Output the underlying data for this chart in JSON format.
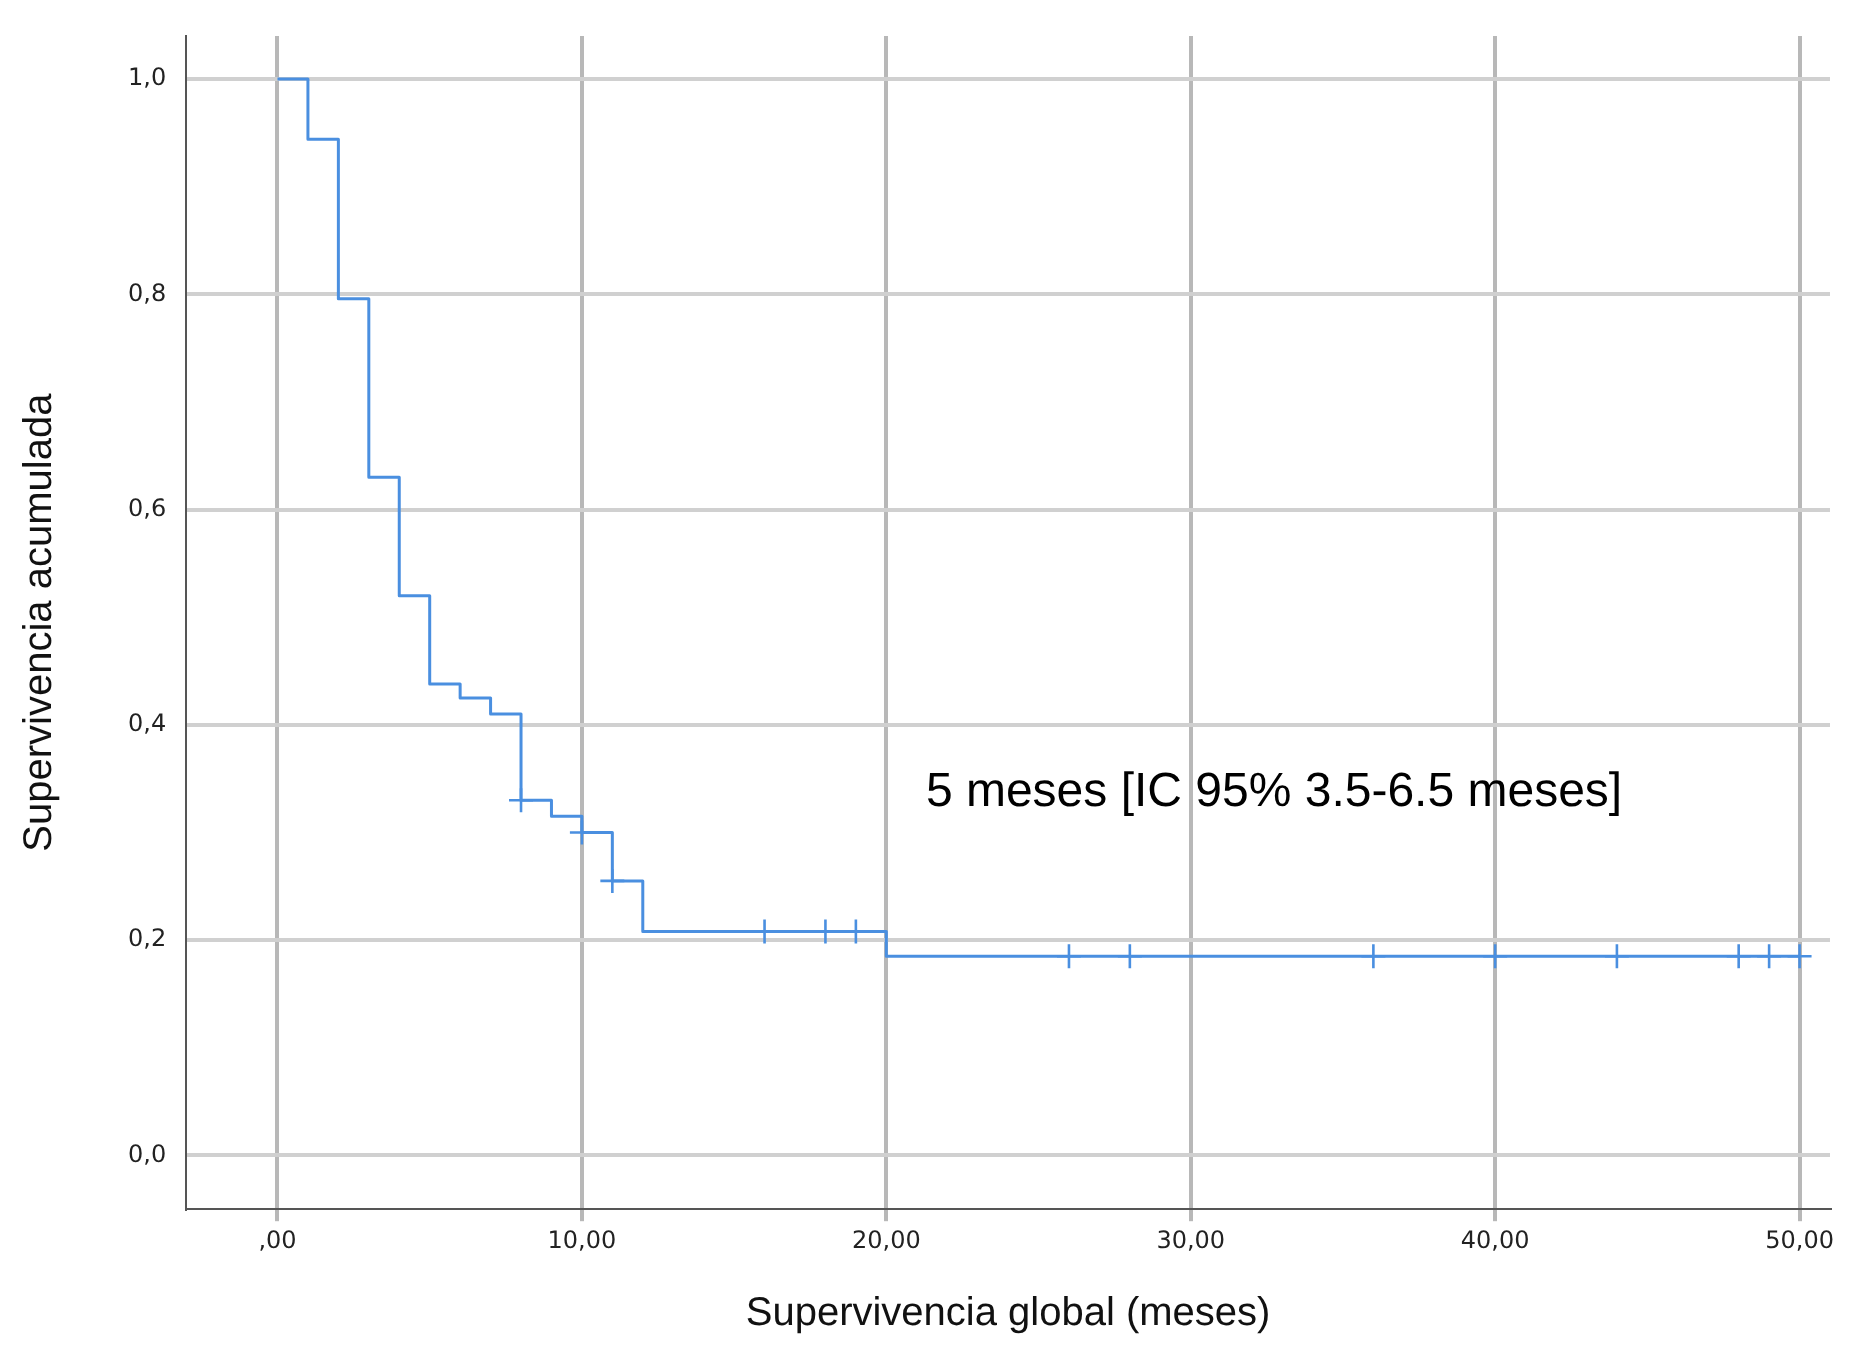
{
  "chart_data": {
    "type": "step",
    "xlabel": "Supervivencia global (meses)",
    "ylabel": "Supervivencia acumulada",
    "annotations": [
      "5 meses [IC 95% 3.5-6.5 meses]"
    ],
    "xlim": [
      -3,
      51
    ],
    "ylim": [
      -0.05,
      1.04
    ],
    "xticks": [
      {
        "value": 0,
        "label": ",00"
      },
      {
        "value": 10,
        "label": "10,00"
      },
      {
        "value": 20,
        "label": "20,00"
      },
      {
        "value": 30,
        "label": "30,00"
      },
      {
        "value": 40,
        "label": "40,00"
      },
      {
        "value": 50,
        "label": "50,00"
      }
    ],
    "yticks": [
      {
        "value": 0,
        "label": "0,0"
      },
      {
        "value": 0.2,
        "label": "0,2"
      },
      {
        "value": 0.4,
        "label": "0,4"
      },
      {
        "value": 0.6,
        "label": "0,6"
      },
      {
        "value": 0.8,
        "label": "0,8"
      },
      {
        "value": 1,
        "label": "1,0"
      }
    ],
    "grid": true,
    "legend": false,
    "series": [
      {
        "color": "#4a8fe0",
        "marker": "none",
        "x": [
          0,
          1,
          2,
          3,
          4,
          5,
          6,
          7,
          8,
          9,
          10,
          11,
          12,
          20,
          50
        ],
        "values": [
          1,
          0.944,
          0.796,
          0.63,
          0.52,
          0.438,
          0.425,
          0.41,
          0.33,
          0.315,
          0.3,
          0.255,
          0.208,
          0.185,
          0.185
        ]
      },
      {
        "type": "scatter",
        "color": "#4a8fe0",
        "marker": "cross",
        "x": [
          8,
          10,
          11,
          16,
          18,
          19,
          26,
          28,
          36,
          40,
          44,
          48,
          49,
          50
        ],
        "values": [
          0.33,
          0.3,
          0.255,
          0.208,
          0.208,
          0.208,
          0.185,
          0.185,
          0.185,
          0.185,
          0.185,
          0.185,
          0.185,
          0.185
        ]
      }
    ]
  }
}
